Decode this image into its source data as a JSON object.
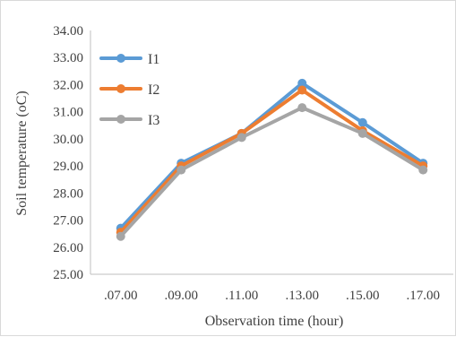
{
  "chart_data": {
    "type": "line",
    "title": "",
    "xlabel": "Observation time (hour)",
    "ylabel": "Soil temperature (oC)",
    "categories": [
      ".07.00",
      ".09.00",
      ".11.00",
      ".13.00",
      ".15.00",
      ".17.00"
    ],
    "ylim": [
      25.0,
      34.0
    ],
    "yticks": [
      "25.00",
      "26.00",
      "27.00",
      "28.00",
      "29.00",
      "30.00",
      "31.00",
      "32.00",
      "33.00",
      "34.00"
    ],
    "grid": false,
    "legend_position": "top-left",
    "series": [
      {
        "name": "I1",
        "color": "#5b9bd5",
        "values": [
          26.7,
          29.1,
          30.2,
          32.05,
          30.6,
          29.1
        ]
      },
      {
        "name": "I2",
        "color": "#ed7d31",
        "values": [
          26.55,
          29.0,
          30.2,
          31.8,
          30.3,
          29.0
        ]
      },
      {
        "name": "I3",
        "color": "#a5a5a5",
        "values": [
          26.4,
          28.85,
          30.05,
          31.15,
          30.2,
          28.85
        ]
      }
    ]
  }
}
